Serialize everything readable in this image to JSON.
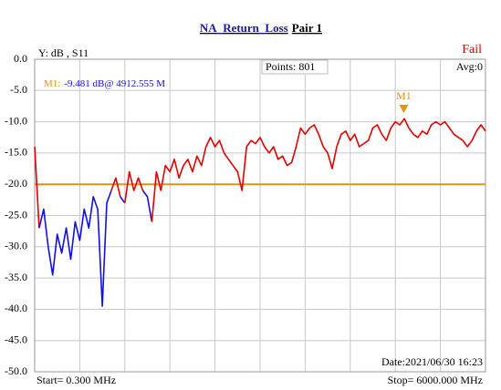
{
  "chart_data": {
    "type": "line",
    "title": "NA_Return_Loss",
    "title_suffix": "Pair 1",
    "y_label": "Y: dB , S11",
    "status": "Fail",
    "points_text": "Points: 801",
    "avg_text": "Avg:0",
    "date_text": "Date:2021/06/30 16:23",
    "start_text": "Start= 0.300 MHz",
    "stop_text": "Stop=  6000.000 MHz",
    "xlim": [
      0.3,
      6000
    ],
    "x_divisions": 10,
    "ylim": [
      -50,
      0
    ],
    "yticks": [
      {
        "value": 0,
        "label": "0.0"
      },
      {
        "value": -5,
        "label": "-5.0"
      },
      {
        "value": -10,
        "label": "-10.0"
      },
      {
        "value": -15,
        "label": "-15.0"
      },
      {
        "value": -20,
        "label": "-20.0"
      },
      {
        "value": -25,
        "label": "-25.0"
      },
      {
        "value": -30,
        "label": "-30.0"
      },
      {
        "value": -35,
        "label": "-35.0"
      },
      {
        "value": -40,
        "label": "-40.0"
      },
      {
        "value": -45,
        "label": "-45.0"
      },
      {
        "value": -50,
        "label": "-50.0"
      }
    ],
    "grid": true,
    "limit": {
      "value": -20,
      "color": "#f0900a"
    },
    "x": [
      0.3,
      60,
      120,
      180,
      240,
      300,
      360,
      420,
      480,
      540,
      600,
      660,
      720,
      780,
      840,
      900,
      960,
      1020,
      1080,
      1140,
      1200,
      1260,
      1320,
      1380,
      1440,
      1500,
      1560,
      1620,
      1680,
      1740,
      1800,
      1860,
      1920,
      1980,
      2040,
      2100,
      2160,
      2220,
      2280,
      2340,
      2400,
      2460,
      2520,
      2580,
      2640,
      2700,
      2760,
      2820,
      2880,
      2940,
      3000,
      3060,
      3120,
      3180,
      3240,
      3300,
      3360,
      3420,
      3480,
      3540,
      3600,
      3660,
      3720,
      3780,
      3840,
      3900,
      3960,
      4020,
      4080,
      4140,
      4200,
      4260,
      4320,
      4380,
      4440,
      4500,
      4560,
      4620,
      4680,
      4740,
      4800,
      4860,
      4920,
      4980,
      5040,
      5100,
      5160,
      5220,
      5280,
      5340,
      5400,
      5460,
      5520,
      5580,
      5640,
      5700,
      5760,
      5820,
      5880,
      5940,
      6000
    ],
    "series": [
      {
        "color": "#e00000",
        "pass_color": "#1010e0",
        "values": [
          -14,
          -27,
          -24,
          -30,
          -34.5,
          -28,
          -31,
          -27,
          -32,
          -26,
          -29,
          -24,
          -27,
          -22,
          -24,
          -39.5,
          -23,
          -21,
          -19,
          -22,
          -23,
          -18,
          -21,
          -19,
          -21,
          -22,
          -26,
          -18,
          -21,
          -17,
          -18,
          -16,
          -19,
          -17,
          -16,
          -18,
          -15.5,
          -17,
          -14,
          -12.5,
          -14,
          -13,
          -15,
          -16,
          -17,
          -18,
          -21,
          -14,
          -13,
          -13.5,
          -12.5,
          -14,
          -15,
          -14,
          -16,
          -15.5,
          -17,
          -16.5,
          -14,
          -11,
          -12,
          -11,
          -10.5,
          -12,
          -14,
          -15,
          -17.5,
          -14,
          -12,
          -11.5,
          -13,
          -12,
          -14,
          -13.5,
          -13,
          -11,
          -10.5,
          -12,
          -13,
          -11,
          -10,
          -10.5,
          -9.5,
          -11,
          -12,
          -12.5,
          -11.5,
          -12,
          -10.5,
          -10,
          -10.5,
          -10,
          -11,
          -12,
          -12.5,
          -13,
          -14,
          -13,
          -11.5,
          -10.5,
          -11.5
        ]
      }
    ],
    "markers": [
      {
        "label": "M1",
        "x": 4912.555,
        "value": -9.481,
        "color": "#f0900a",
        "readout_name": "M1:",
        "readout": "-9.481 dB@ 4912.555 M"
      }
    ]
  }
}
